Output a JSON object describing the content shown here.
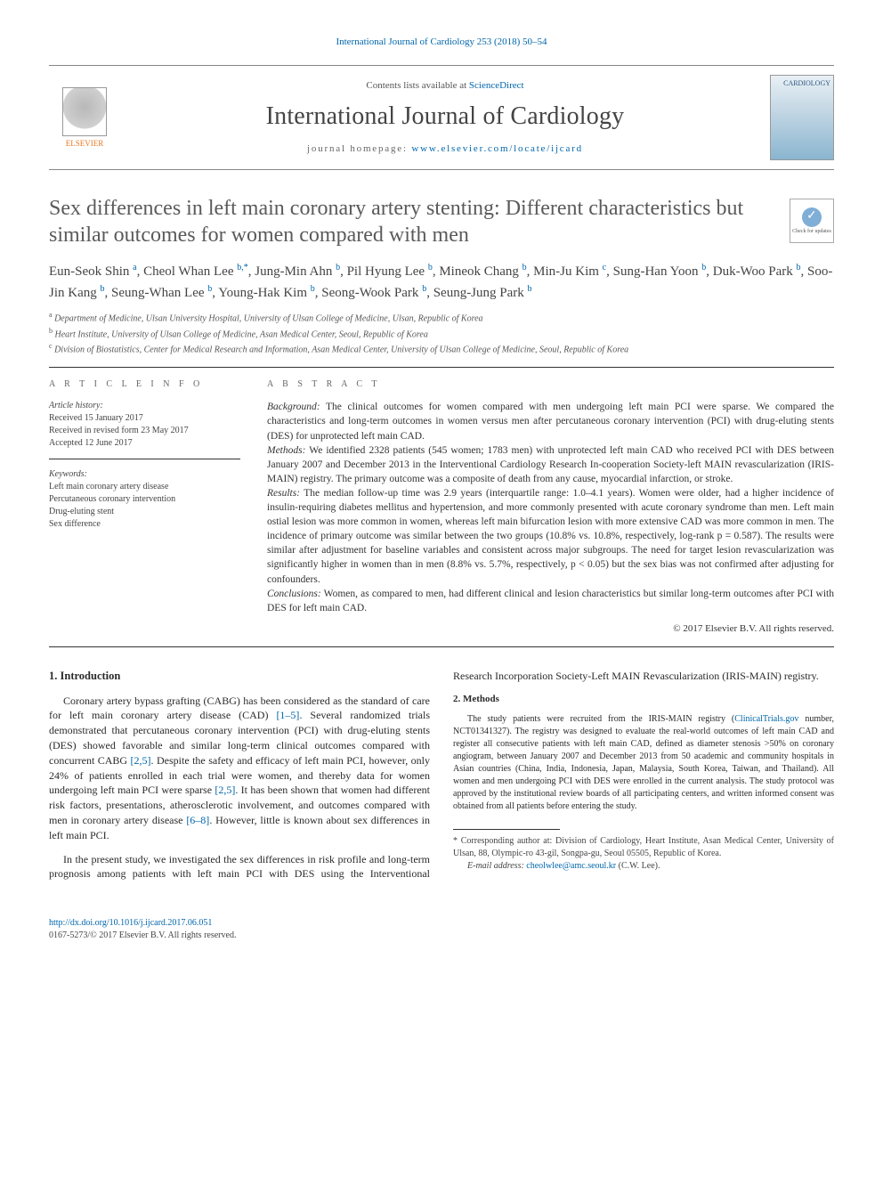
{
  "top_citation": "International Journal of Cardiology 253 (2018) 50–54",
  "masthead": {
    "available": "Contents lists available at ",
    "available_link": "ScienceDirect",
    "journal": "International Journal of Cardiology",
    "homepage_label": "journal homepage: ",
    "homepage_url": "www.elsevier.com/locate/ijcard",
    "publisher": "ELSEVIER",
    "cover_label": "CARDIOLOGY"
  },
  "title": "Sex differences in left main coronary artery stenting: Different characteristics but similar outcomes for women compared with men",
  "update_badge": "Check for updates",
  "authors": [
    {
      "name": "Eun-Seok Shin",
      "aff": "a"
    },
    {
      "name": "Cheol Whan Lee",
      "aff": "b,*"
    },
    {
      "name": "Jung-Min Ahn",
      "aff": "b"
    },
    {
      "name": "Pil Hyung Lee",
      "aff": "b"
    },
    {
      "name": "Mineok Chang",
      "aff": "b"
    },
    {
      "name": "Min-Ju Kim",
      "aff": "c"
    },
    {
      "name": "Sung-Han Yoon",
      "aff": "b"
    },
    {
      "name": "Duk-Woo Park",
      "aff": "b"
    },
    {
      "name": "Soo-Jin Kang",
      "aff": "b"
    },
    {
      "name": "Seung-Whan Lee",
      "aff": "b"
    },
    {
      "name": "Young-Hak Kim",
      "aff": "b"
    },
    {
      "name": "Seong-Wook Park",
      "aff": "b"
    },
    {
      "name": "Seung-Jung Park",
      "aff": "b"
    }
  ],
  "affiliations": {
    "a": "Department of Medicine, Ulsan University Hospital, University of Ulsan College of Medicine, Ulsan, Republic of Korea",
    "b": "Heart Institute, University of Ulsan College of Medicine, Asan Medical Center, Seoul, Republic of Korea",
    "c": "Division of Biostatistics, Center for Medical Research and Information, Asan Medical Center, University of Ulsan College of Medicine, Seoul, Republic of Korea"
  },
  "article_info": {
    "heading": "A R T I C L E   I N F O",
    "history_label": "Article history:",
    "received": "Received 15 January 2017",
    "revised": "Received in revised form 23 May 2017",
    "accepted": "Accepted 12 June 2017",
    "keywords_label": "Keywords:",
    "keywords": [
      "Left main coronary artery disease",
      "Percutaneous coronary intervention",
      "Drug-eluting stent",
      "Sex difference"
    ]
  },
  "abstract": {
    "heading": "A B S T R A C T",
    "background_label": "Background:",
    "background": " The clinical outcomes for women compared with men undergoing left main PCI were sparse. We compared the characteristics and long-term outcomes in women versus men after percutaneous coronary intervention (PCI) with drug-eluting stents (DES) for unprotected left main CAD.",
    "methods_label": "Methods:",
    "methods": " We identified 2328 patients (545 women; 1783 men) with unprotected left main CAD who received PCI with DES between January 2007 and December 2013 in the Interventional Cardiology Research In-cooperation Society-left MAIN revascularization (IRIS-MAIN) registry. The primary outcome was a composite of death from any cause, myocardial infarction, or stroke.",
    "results_label": "Results:",
    "results": " The median follow-up time was 2.9 years (interquartile range: 1.0–4.1 years). Women were older, had a higher incidence of insulin-requiring diabetes mellitus and hypertension, and more commonly presented with acute coronary syndrome than men. Left main ostial lesion was more common in women, whereas left main bifurcation lesion with more extensive CAD was more common in men. The incidence of primary outcome was similar between the two groups (10.8% vs. 10.8%, respectively, log-rank p = 0.587). The results were similar after adjustment for baseline variables and consistent across major subgroups. The need for target lesion revascularization was significantly higher in women than in men (8.8% vs. 5.7%, respectively, p < 0.05) but the sex bias was not confirmed after adjusting for confounders.",
    "conclusions_label": "Conclusions:",
    "conclusions": " Women, as compared to men, had different clinical and lesion characteristics but similar long-term outcomes after PCI with DES for left main CAD.",
    "copyright": "© 2017 Elsevier B.V. All rights reserved."
  },
  "sections": {
    "intro_h": "1. Introduction",
    "intro_p1a": "Coronary artery bypass grafting (CABG) has been considered as the standard of care for left main coronary artery disease (CAD) ",
    "intro_ref1": "[1–5]",
    "intro_p1b": ". Several randomized trials demonstrated that percutaneous coronary intervention (PCI) with drug-eluting stents (DES) showed favorable and similar long-term clinical outcomes compared with concurrent CABG ",
    "intro_ref2": "[2,5]",
    "intro_p1c": ". Despite the safety and efficacy of left main PCI, however, only 24% of patients enrolled in each trial were women, and thereby data for women undergoing left main PCI were sparse ",
    "intro_ref3": "[2,5]",
    "intro_p1d": ". It has been shown that women had different risk factors, presentations, atherosclerotic involvement, and outcomes compared with men in coronary ",
    "intro_p1e": "artery disease ",
    "intro_ref4": "[6–8]",
    "intro_p1f": ". However, little is known about sex differences in left main PCI.",
    "intro_p2": "In the present study, we investigated the sex differences in risk profile and long-term prognosis among patients with left main PCI with DES using the Interventional Research Incorporation Society-Left MAIN Revascularization (IRIS-MAIN) registry.",
    "methods_h": "2. Methods",
    "methods_p1a": "The study patients were recruited from the IRIS-MAIN registry (",
    "methods_link": "ClinicalTrials.gov",
    "methods_p1b": " number, NCT01341327). The registry was designed to evaluate the real-world outcomes of left main CAD and register all consecutive patients with left main CAD, defined as diameter stenosis >50% on coronary angiogram, between January 2007 and December 2013 from 50 academic and community hospitals in Asian countries (China, India, Indonesia, Japan, Malaysia, South Korea, Taiwan, and Thailand). All women and men undergoing PCI with DES were enrolled in the current analysis. The study protocol was approved by the institutional review boards of all participating centers, and written informed consent was obtained from all patients before entering the study."
  },
  "footnote": {
    "corr_marker": "*",
    "corr_text": " Corresponding author at: Division of Cardiology, Heart Institute, Asan Medical Center, University of Ulsan, 88, Olympic-ro 43-gil, Songpa-gu, Seoul 05505, Republic of Korea.",
    "email_label": "E-mail address: ",
    "email": "cheolwlee@amc.seoul.kr",
    "email_suffix": " (C.W. Lee)."
  },
  "doi": {
    "url": "http://dx.doi.org/10.1016/j.ijcard.2017.06.051",
    "issn": "0167-5273/© 2017 Elsevier B.V. All rights reserved."
  },
  "colors": {
    "link": "#0066aa",
    "publisher_orange": "#e87722",
    "text": "#2a2a2a",
    "heading_gray": "#5a5a5a"
  }
}
